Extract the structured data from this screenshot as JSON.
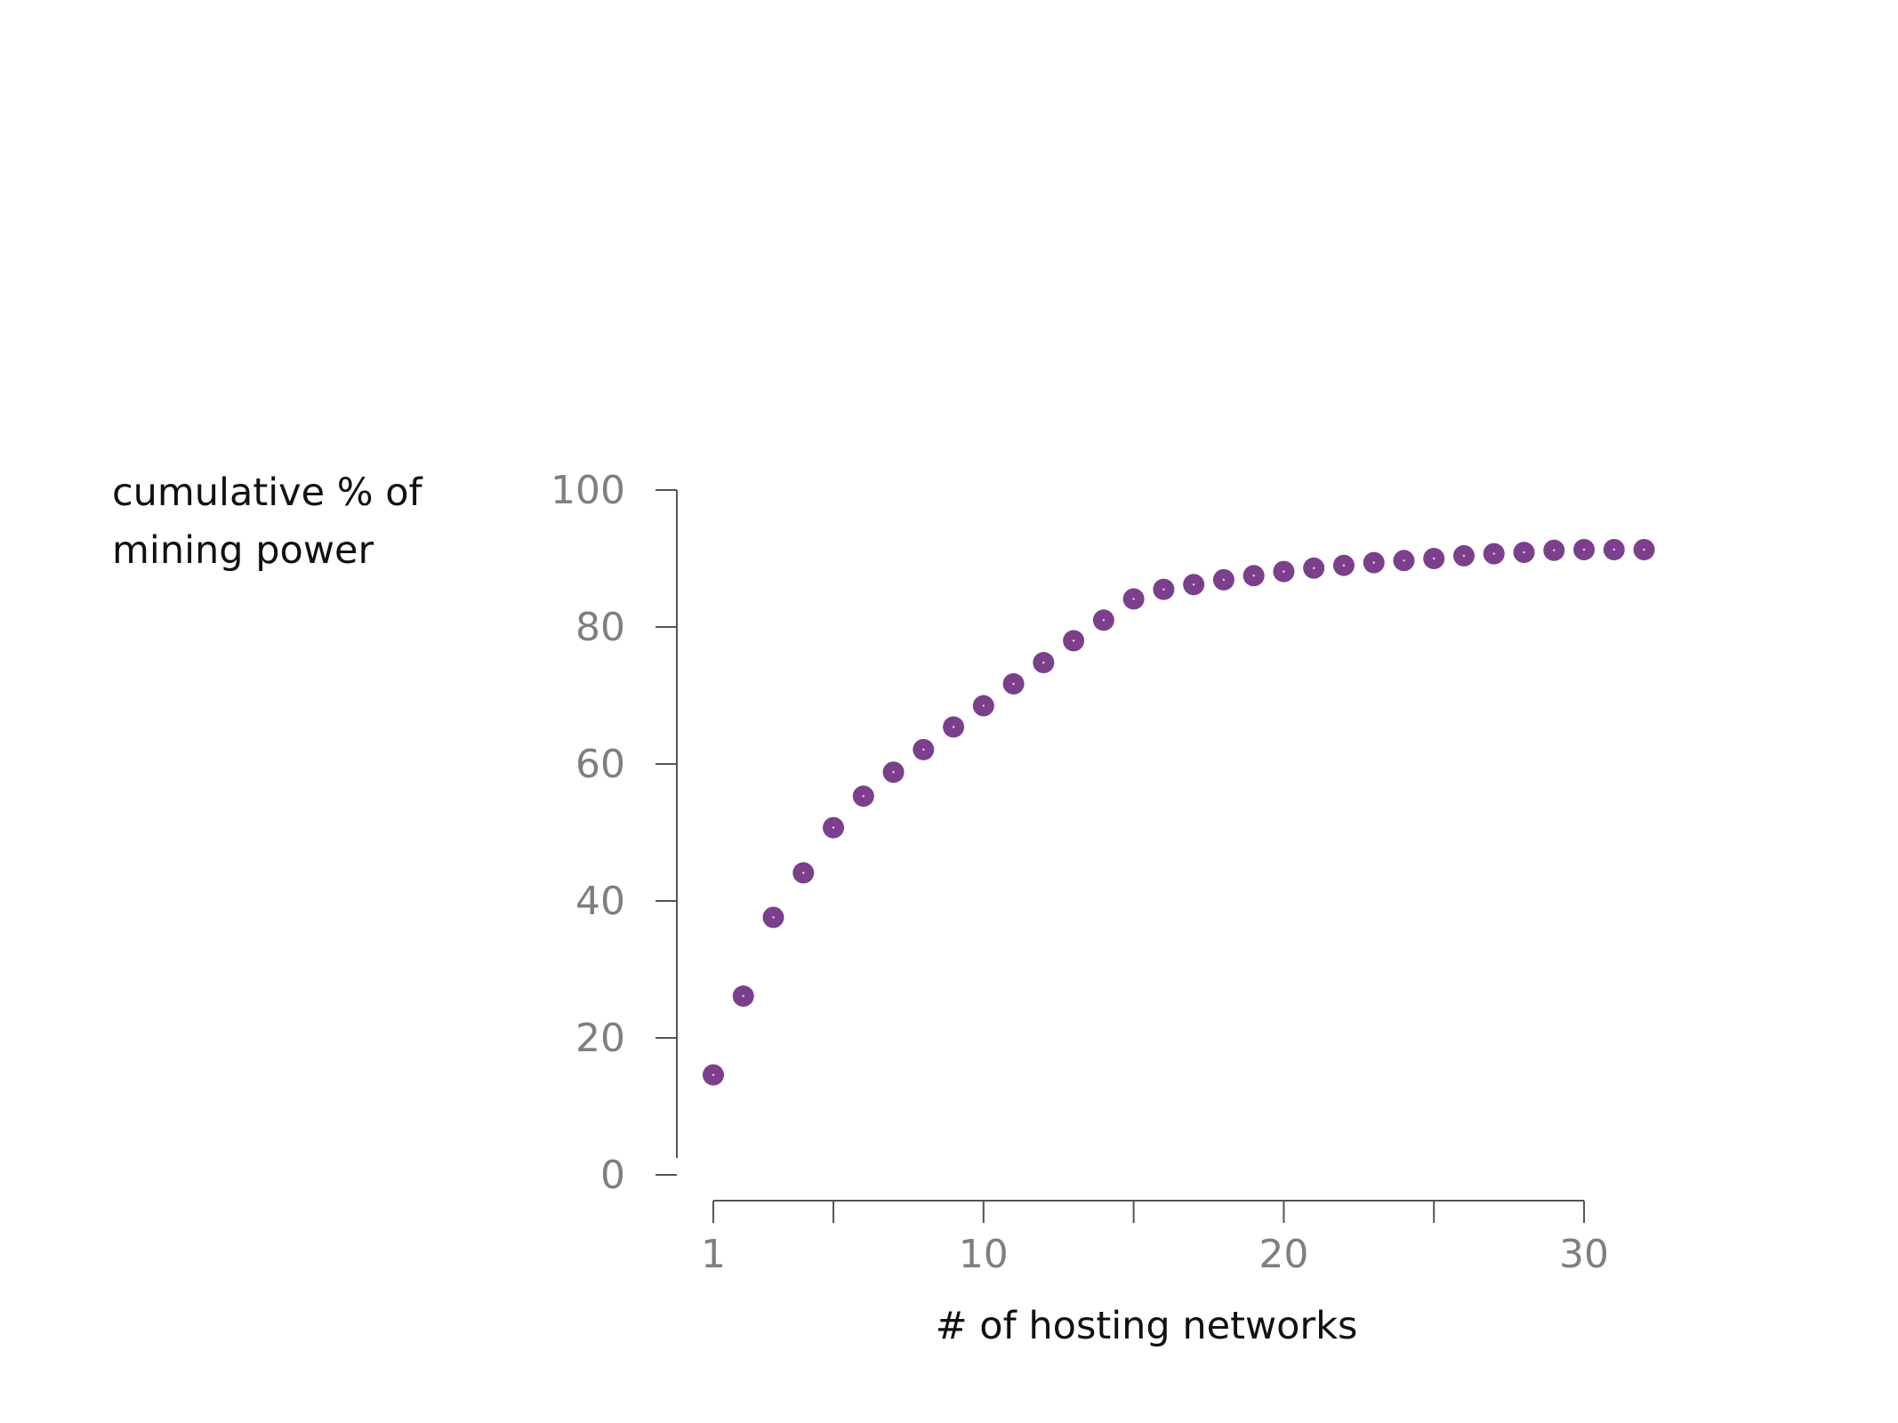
{
  "chart_data": {
    "type": "scatter",
    "title": "",
    "ylabel_lines": [
      "cumulative % of",
      "mining power"
    ],
    "xlabel": "# of hosting networks",
    "xlim": [
      0,
      31.5
    ],
    "ylim": [
      0,
      100
    ],
    "x_ticks": [
      1,
      5,
      10,
      15,
      20,
      25,
      30
    ],
    "x_tick_labels": {
      "1": "1",
      "10": "10",
      "20": "20",
      "30": "30"
    },
    "y_ticks": [
      0,
      20,
      40,
      60,
      80,
      100
    ],
    "y_tick_labels": [
      "0",
      "20",
      "40",
      "60",
      "80",
      "100"
    ],
    "grid": false,
    "point_color": "#7b3f8c",
    "points": [
      {
        "x": 1,
        "y": 14.6
      },
      {
        "x": 2,
        "y": 26.1
      },
      {
        "x": 3,
        "y": 37.6
      },
      {
        "x": 4,
        "y": 44.1
      },
      {
        "x": 5,
        "y": 50.7
      },
      {
        "x": 6,
        "y": 55.3
      },
      {
        "x": 7,
        "y": 58.8
      },
      {
        "x": 8,
        "y": 62.1
      },
      {
        "x": 9,
        "y": 65.4
      },
      {
        "x": 10,
        "y": 68.5
      },
      {
        "x": 11,
        "y": 71.7
      },
      {
        "x": 12,
        "y": 74.8
      },
      {
        "x": 13,
        "y": 78.0
      },
      {
        "x": 14,
        "y": 81.0
      },
      {
        "x": 15,
        "y": 84.1
      },
      {
        "x": 16,
        "y": 85.5
      },
      {
        "x": 17,
        "y": 86.2
      },
      {
        "x": 18,
        "y": 86.9
      },
      {
        "x": 19,
        "y": 87.5
      },
      {
        "x": 20,
        "y": 88.1
      },
      {
        "x": 21,
        "y": 88.6
      },
      {
        "x": 22,
        "y": 89.0
      },
      {
        "x": 23,
        "y": 89.4
      },
      {
        "x": 24,
        "y": 89.7
      },
      {
        "x": 25,
        "y": 90.0
      },
      {
        "x": 26,
        "y": 90.4
      },
      {
        "x": 27,
        "y": 90.7
      },
      {
        "x": 28,
        "y": 90.9
      },
      {
        "x": 29,
        "y": 91.2
      },
      {
        "x": 30,
        "y": 91.3
      },
      {
        "x": 31,
        "y": 91.3
      },
      {
        "x": 32,
        "y": 91.3
      }
    ]
  }
}
